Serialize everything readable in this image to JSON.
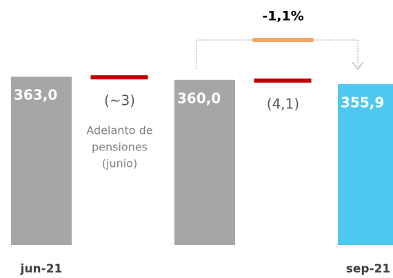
{
  "chart_data": {
    "type": "waterfall",
    "categories": [
      "jun-21",
      null,
      null,
      null,
      "sep-21"
    ],
    "values": [
      363.0,
      -3,
      360.0,
      -4.1,
      355.9
    ],
    "value_labels": [
      "363,0",
      "(~3)",
      "360,0",
      "(4,1)",
      "355,9"
    ],
    "measure": [
      "total",
      "relative",
      "total",
      "relative",
      "total"
    ],
    "colors": [
      "#a6a6a6",
      "#c00000",
      "#a6a6a6",
      "#c00000",
      "#4fc8f0"
    ],
    "ylim": [
      205,
      435
    ],
    "annotation": [
      "Adelanto de",
      "pensiones",
      "(junio)"
    ],
    "change": {
      "value": -1.1,
      "label": "-1,1%",
      "color": "#f4a460"
    }
  }
}
